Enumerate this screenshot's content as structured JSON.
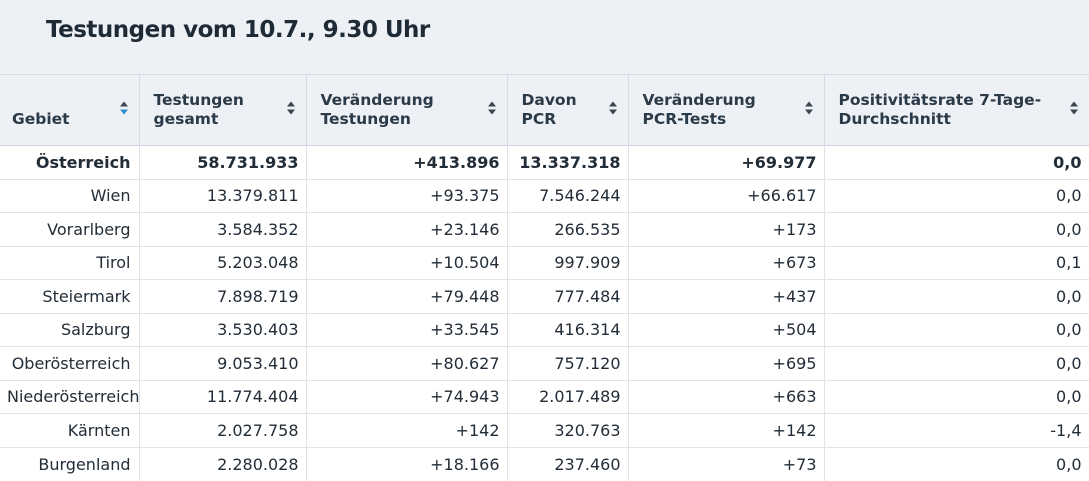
{
  "title": "Testungen vom 10.7., 9.30 Uhr",
  "colors": {
    "sort_active": "#2d8ed6",
    "sort_inactive": "#3c4650"
  },
  "columns": [
    {
      "label": "Gebiet",
      "sort": "active"
    },
    {
      "label": "Testungen gesamt",
      "sort": "inactive"
    },
    {
      "label": "Veränderung Testungen",
      "sort": "inactive"
    },
    {
      "label": "Davon PCR",
      "sort": "inactive"
    },
    {
      "label": "Veränderung PCR-Tests",
      "sort": "inactive"
    },
    {
      "label": "Positivitätsrate 7-Tage-Durchschnitt",
      "sort": "inactive"
    }
  ],
  "rows": [
    [
      "Österreich",
      "58.731.933",
      "+413.896",
      "13.337.318",
      "+69.977",
      "0,0"
    ],
    [
      "Wien",
      "13.379.811",
      "+93.375",
      "7.546.244",
      "+66.617",
      "0,0"
    ],
    [
      "Vorarlberg",
      "3.584.352",
      "+23.146",
      "266.535",
      "+173",
      "0,0"
    ],
    [
      "Tirol",
      "5.203.048",
      "+10.504",
      "997.909",
      "+673",
      "0,1"
    ],
    [
      "Steiermark",
      "7.898.719",
      "+79.448",
      "777.484",
      "+437",
      "0,0"
    ],
    [
      "Salzburg",
      "3.530.403",
      "+33.545",
      "416.314",
      "+504",
      "0,0"
    ],
    [
      "Oberösterreich",
      "9.053.410",
      "+80.627",
      "757.120",
      "+695",
      "0,0"
    ],
    [
      "Niederösterreich",
      "11.774.404",
      "+74.943",
      "2.017.489",
      "+663",
      "0,0"
    ],
    [
      "Kärnten",
      "2.027.758",
      "+142",
      "320.763",
      "+142",
      "-1,4"
    ],
    [
      "Burgenland",
      "2.280.028",
      "+18.166",
      "237.460",
      "+73",
      "0,0"
    ]
  ]
}
